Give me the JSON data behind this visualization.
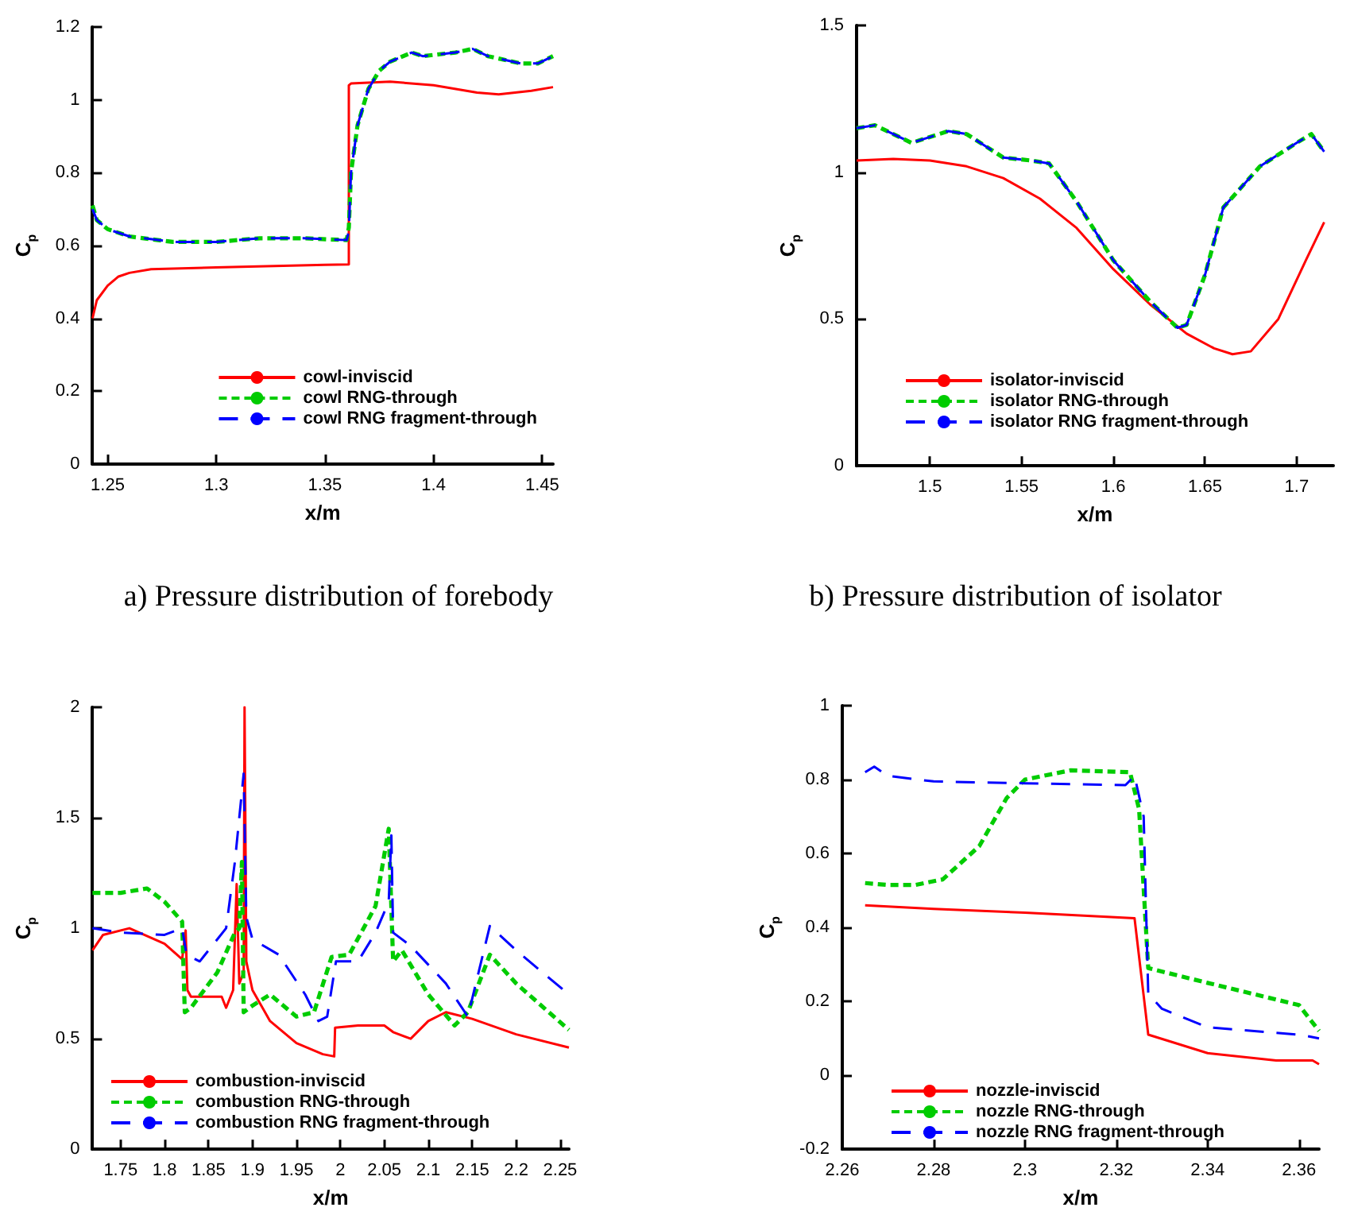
{
  "chart_data": [
    {
      "type": "line",
      "xlabel": "x/m",
      "ylabel": "C$_{p}$",
      "xlim": [
        1.243,
        1.455
      ],
      "xticks": [
        1.25,
        1.3,
        1.35,
        1.4,
        1.45
      ],
      "ylim": [
        0,
        1.2
      ],
      "yticks": [
        0,
        0.2,
        0.4,
        0.6,
        0.8,
        1,
        1.2
      ],
      "grid": false,
      "legend": "bottom right",
      "marker": "none",
      "annotations": [
        "a) Pressure distribution of forebody"
      ],
      "series": [
        {
          "name": "cowl-inviscid",
          "color": "#ff0000",
          "line_style": "solid",
          "x": [
            1.243,
            1.245,
            1.25,
            1.255,
            1.26,
            1.27,
            1.3,
            1.35,
            1.361,
            1.361,
            1.362,
            1.38,
            1.4,
            1.42,
            1.43,
            1.445,
            1.455
          ],
          "values": [
            0.4,
            0.45,
            0.49,
            0.515,
            0.525,
            0.535,
            0.54,
            0.547,
            0.548,
            1.04,
            1.045,
            1.05,
            1.04,
            1.02,
            1.015,
            1.025,
            1.035
          ]
        },
        {
          "name": "cowl RNG-through",
          "color": "#00cc00",
          "line_style": "dashed",
          "x": [
            1.243,
            1.245,
            1.25,
            1.26,
            1.28,
            1.3,
            1.32,
            1.34,
            1.36,
            1.361,
            1.362,
            1.365,
            1.37,
            1.375,
            1.38,
            1.39,
            1.395,
            1.41,
            1.418,
            1.425,
            1.44,
            1.448,
            1.455
          ],
          "values": [
            0.71,
            0.67,
            0.645,
            0.625,
            0.61,
            0.61,
            0.62,
            0.62,
            0.615,
            0.65,
            0.8,
            0.93,
            1.03,
            1.08,
            1.105,
            1.13,
            1.12,
            1.13,
            1.14,
            1.12,
            1.1,
            1.1,
            1.12
          ]
        },
        {
          "name": "cowl RNG fragment-through",
          "color": "#0000ff",
          "line_style": "dashed",
          "x": [
            1.243,
            1.245,
            1.25,
            1.26,
            1.28,
            1.3,
            1.32,
            1.34,
            1.36,
            1.361,
            1.362,
            1.365,
            1.37,
            1.375,
            1.38,
            1.39,
            1.395,
            1.41,
            1.418,
            1.425,
            1.44,
            1.448,
            1.455
          ],
          "values": [
            0.7,
            0.67,
            0.645,
            0.625,
            0.61,
            0.61,
            0.62,
            0.62,
            0.615,
            0.64,
            0.8,
            0.93,
            1.03,
            1.08,
            1.105,
            1.13,
            1.12,
            1.13,
            1.14,
            1.12,
            1.1,
            1.1,
            1.12
          ]
        }
      ]
    },
    {
      "type": "line",
      "xlabel": "x/m",
      "ylabel": "C$_{p}$",
      "xlim": [
        1.46,
        1.72
      ],
      "xticks": [
        1.5,
        1.55,
        1.6,
        1.65,
        1.7
      ],
      "ylim": [
        0,
        1.5
      ],
      "yticks": [
        0,
        0.5,
        1,
        1.5
      ],
      "grid": false,
      "legend": "bottom",
      "marker": "none",
      "annotations": [
        "b) Pressure distribution of isolator"
      ],
      "series": [
        {
          "name": "isolator-inviscid",
          "color": "#ff0000",
          "line_style": "solid",
          "x": [
            1.46,
            1.48,
            1.5,
            1.52,
            1.54,
            1.56,
            1.58,
            1.6,
            1.62,
            1.64,
            1.655,
            1.665,
            1.675,
            1.69,
            1.705,
            1.715
          ],
          "values": [
            1.04,
            1.045,
            1.04,
            1.02,
            0.98,
            0.91,
            0.81,
            0.67,
            0.55,
            0.45,
            0.4,
            0.38,
            0.39,
            0.5,
            0.7,
            0.83
          ]
        },
        {
          "name": "isolator RNG-through",
          "color": "#00cc00",
          "line_style": "dashed",
          "x": [
            1.46,
            1.47,
            1.49,
            1.51,
            1.52,
            1.54,
            1.555,
            1.565,
            1.58,
            1.6,
            1.62,
            1.635,
            1.64,
            1.65,
            1.66,
            1.68,
            1.7,
            1.708,
            1.715
          ],
          "values": [
            1.15,
            1.16,
            1.1,
            1.14,
            1.13,
            1.05,
            1.04,
            1.03,
            0.9,
            0.7,
            0.56,
            0.47,
            0.48,
            0.65,
            0.88,
            1.02,
            1.1,
            1.13,
            1.07
          ]
        },
        {
          "name": "isolator RNG fragment-through",
          "color": "#0000ff",
          "line_style": "dashed",
          "x": [
            1.46,
            1.47,
            1.49,
            1.51,
            1.52,
            1.54,
            1.555,
            1.565,
            1.58,
            1.6,
            1.62,
            1.635,
            1.64,
            1.65,
            1.66,
            1.68,
            1.7,
            1.708,
            1.715
          ],
          "values": [
            1.15,
            1.16,
            1.1,
            1.14,
            1.13,
            1.05,
            1.04,
            1.03,
            0.9,
            0.7,
            0.56,
            0.47,
            0.48,
            0.65,
            0.88,
            1.02,
            1.1,
            1.13,
            1.07
          ]
        }
      ]
    },
    {
      "type": "line",
      "xlabel": "x/m",
      "ylabel": "C$_{p}$",
      "xlim": [
        1.718,
        2.26
      ],
      "xticks": [
        1.75,
        1.8,
        1.85,
        1.9,
        1.95,
        2,
        2.05,
        2.1,
        2.15,
        2.2,
        2.25
      ],
      "ylim": [
        0,
        2
      ],
      "yticks": [
        0,
        0.5,
        1,
        1.5,
        2
      ],
      "grid": false,
      "legend": "bottom left",
      "marker": "none",
      "series": [
        {
          "name": "combustion-inviscid",
          "color": "#ff0000",
          "line_style": "solid",
          "x": [
            1.718,
            1.73,
            1.76,
            1.8,
            1.82,
            1.824,
            1.826,
            1.83,
            1.85,
            1.865,
            1.87,
            1.878,
            1.882,
            1.885,
            1.89,
            1.891,
            1.893,
            1.9,
            1.92,
            1.95,
            1.98,
            1.993,
            1.994,
            2.02,
            2.05,
            2.06,
            2.08,
            2.1,
            2.12,
            2.15,
            2.2,
            2.26
          ],
          "values": [
            0.9,
            0.97,
            1.0,
            0.93,
            0.86,
            0.99,
            0.72,
            0.69,
            0.69,
            0.69,
            0.64,
            0.72,
            1.2,
            0.75,
            0.8,
            2.0,
            0.85,
            0.72,
            0.58,
            0.48,
            0.43,
            0.42,
            0.55,
            0.56,
            0.56,
            0.53,
            0.5,
            0.58,
            0.62,
            0.59,
            0.52,
            0.46
          ]
        },
        {
          "name": "combustion RNG-through",
          "color": "#00cc00",
          "line_style": "dashed",
          "x": [
            1.718,
            1.75,
            1.78,
            1.8,
            1.82,
            1.823,
            1.83,
            1.845,
            1.86,
            1.88,
            1.885,
            1.888,
            1.89,
            1.9,
            1.92,
            1.95,
            1.97,
            1.99,
            2.01,
            2.04,
            2.055,
            2.06,
            2.07,
            2.1,
            2.13,
            2.145,
            2.17,
            2.2,
            2.26
          ],
          "values": [
            1.16,
            1.16,
            1.18,
            1.12,
            1.03,
            0.62,
            0.64,
            0.72,
            0.8,
            0.98,
            1.0,
            1.3,
            0.62,
            0.65,
            0.7,
            0.6,
            0.62,
            0.87,
            0.88,
            1.1,
            1.45,
            0.85,
            0.9,
            0.7,
            0.56,
            0.62,
            0.88,
            0.75,
            0.54
          ]
        },
        {
          "name": "combustion RNG fragment-through",
          "color": "#0000ff",
          "line_style": "dashed",
          "x": [
            1.718,
            1.75,
            1.8,
            1.82,
            1.825,
            1.84,
            1.87,
            1.88,
            1.89,
            1.893,
            1.9,
            1.93,
            1.96,
            1.975,
            1.985,
            1.995,
            2.02,
            2.04,
            2.055,
            2.058,
            2.06,
            2.08,
            2.12,
            2.145,
            2.17,
            2.2,
            2.26
          ],
          "values": [
            1.0,
            0.98,
            0.97,
            1.0,
            0.88,
            0.85,
            1.0,
            1.3,
            1.7,
            1.05,
            0.95,
            0.88,
            0.7,
            0.58,
            0.6,
            0.85,
            0.85,
            0.98,
            1.12,
            1.42,
            0.98,
            0.92,
            0.75,
            0.6,
            1.01,
            0.9,
            0.7
          ]
        }
      ]
    },
    {
      "type": "line",
      "xlabel": "x/m",
      "ylabel": "C$_{p}$",
      "xlim": [
        2.26,
        2.3644
      ],
      "xticks": [
        2.26,
        2.28,
        2.3,
        2.32,
        2.34,
        2.36
      ],
      "ylim": [
        -0.2,
        1
      ],
      "yticks": [
        -0.2,
        0,
        0.2,
        0.4,
        0.6,
        0.8,
        1
      ],
      "grid": false,
      "legend": "bottom left",
      "marker": "none",
      "series": [
        {
          "name": "nozzle-inviscid",
          "color": "#ff0000",
          "line_style": "solid",
          "x": [
            2.265,
            2.28,
            2.3,
            2.324,
            2.327,
            2.34,
            2.355,
            2.363,
            2.3644
          ],
          "values": [
            0.46,
            0.45,
            0.44,
            0.425,
            0.11,
            0.06,
            0.04,
            0.04,
            0.03
          ]
        },
        {
          "name": "nozzle RNG-through",
          "color": "#00cc00",
          "line_style": "dashed",
          "x": [
            2.265,
            2.27,
            2.276,
            2.282,
            2.29,
            2.296,
            2.3,
            2.31,
            2.323,
            2.325,
            2.327,
            2.34,
            2.35,
            2.36,
            2.3644
          ],
          "values": [
            0.52,
            0.515,
            0.515,
            0.53,
            0.62,
            0.75,
            0.8,
            0.825,
            0.82,
            0.72,
            0.29,
            0.25,
            0.22,
            0.19,
            0.12
          ]
        },
        {
          "name": "nozzle RNG fragment-through",
          "color": "#0000ff",
          "line_style": "dashed",
          "x": [
            2.265,
            2.267,
            2.27,
            2.28,
            2.3,
            2.322,
            2.324,
            2.326,
            2.327,
            2.33,
            2.34,
            2.36,
            2.3644
          ],
          "values": [
            0.82,
            0.835,
            0.81,
            0.795,
            0.79,
            0.785,
            0.81,
            0.7,
            0.22,
            0.18,
            0.13,
            0.11,
            0.1
          ]
        }
      ]
    }
  ]
}
